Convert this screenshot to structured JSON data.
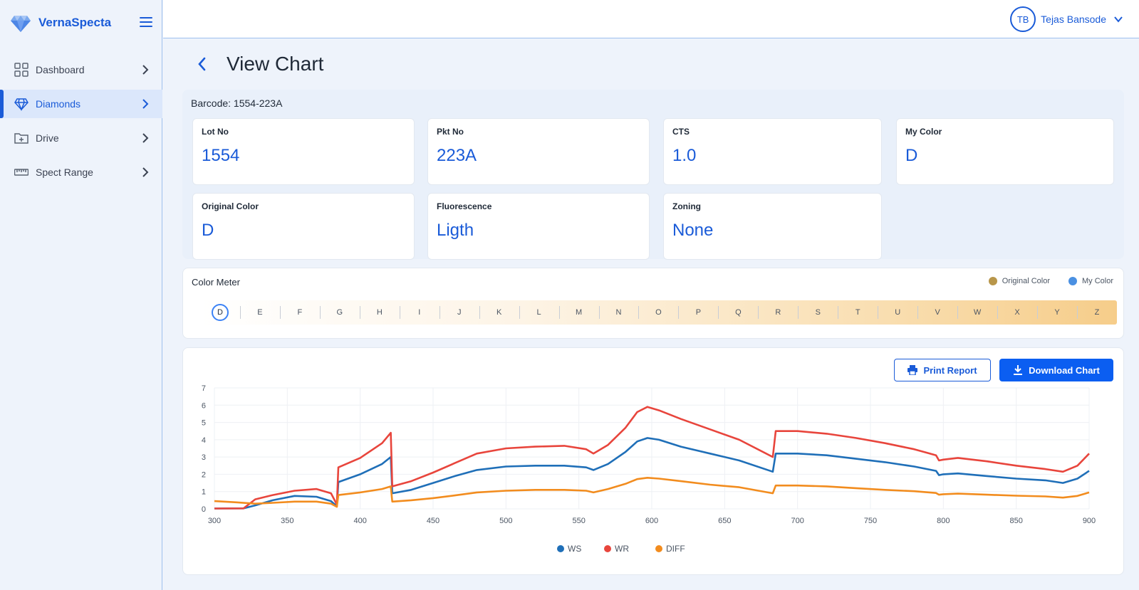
{
  "app": {
    "name": "VernaSpecta"
  },
  "user": {
    "initials": "TB",
    "name": "Tejas Bansode"
  },
  "sidebar": {
    "items": [
      {
        "label": "Dashboard",
        "icon": "grid-icon",
        "active": false
      },
      {
        "label": "Diamonds",
        "icon": "diamond-icon",
        "active": true
      },
      {
        "label": "Drive",
        "icon": "folder-plus-icon",
        "active": false
      },
      {
        "label": "Spect Range",
        "icon": "ruler-icon",
        "active": false
      }
    ]
  },
  "page": {
    "title": "View Chart",
    "barcode": "Barcode: 1554-223A"
  },
  "cards": [
    {
      "label": "Lot No",
      "value": "1554"
    },
    {
      "label": "Pkt No",
      "value": "223A"
    },
    {
      "label": "CTS",
      "value": "1.0"
    },
    {
      "label": "My Color",
      "value": "D"
    },
    {
      "label": "Original Color",
      "value": "D"
    },
    {
      "label": "Fluorescence",
      "value": "Ligth"
    },
    {
      "label": "Zoning",
      "value": "None"
    }
  ],
  "color_meter": {
    "title": "Color Meter",
    "legend": [
      {
        "label": "Original Color",
        "color": "#b8964a"
      },
      {
        "label": "My Color",
        "color": "#4a90e2"
      }
    ],
    "grades": [
      "D",
      "E",
      "F",
      "G",
      "H",
      "I",
      "J",
      "K",
      "L",
      "M",
      "N",
      "O",
      "P",
      "Q",
      "R",
      "S",
      "T",
      "U",
      "V",
      "W",
      "X",
      "Y",
      "Z"
    ],
    "selected": "D"
  },
  "actions": {
    "print_label": "Print Report",
    "download_label": "Download Chart"
  },
  "chart_data": {
    "type": "line",
    "xlim": [
      300,
      900
    ],
    "ylim": [
      0,
      7
    ],
    "x_ticks": [
      300,
      350,
      400,
      450,
      500,
      550,
      600,
      650,
      700,
      750,
      800,
      850,
      900
    ],
    "y_ticks": [
      0,
      1,
      2,
      3,
      4,
      5,
      6,
      7
    ],
    "grid": true,
    "legend_position": "bottom-center",
    "series": [
      {
        "name": "WS",
        "color": "#1f6fb8",
        "points": [
          [
            300,
            0.02
          ],
          [
            320,
            0.03
          ],
          [
            328,
            0.2
          ],
          [
            340,
            0.5
          ],
          [
            355,
            0.75
          ],
          [
            370,
            0.7
          ],
          [
            380,
            0.45
          ],
          [
            384,
            0.15
          ],
          [
            385,
            1.55
          ],
          [
            400,
            2.0
          ],
          [
            415,
            2.6
          ],
          [
            421,
            3.0
          ],
          [
            422,
            0.9
          ],
          [
            435,
            1.1
          ],
          [
            450,
            1.5
          ],
          [
            465,
            1.9
          ],
          [
            480,
            2.25
          ],
          [
            500,
            2.45
          ],
          [
            520,
            2.5
          ],
          [
            540,
            2.5
          ],
          [
            555,
            2.4
          ],
          [
            560,
            2.25
          ],
          [
            570,
            2.6
          ],
          [
            582,
            3.3
          ],
          [
            590,
            3.9
          ],
          [
            597,
            4.1
          ],
          [
            605,
            4.0
          ],
          [
            620,
            3.6
          ],
          [
            640,
            3.2
          ],
          [
            660,
            2.8
          ],
          [
            683,
            2.15
          ],
          [
            685,
            3.2
          ],
          [
            700,
            3.2
          ],
          [
            720,
            3.1
          ],
          [
            740,
            2.9
          ],
          [
            760,
            2.7
          ],
          [
            780,
            2.45
          ],
          [
            795,
            2.2
          ],
          [
            797,
            1.95
          ],
          [
            800,
            2.0
          ],
          [
            810,
            2.05
          ],
          [
            830,
            1.9
          ],
          [
            850,
            1.75
          ],
          [
            870,
            1.65
          ],
          [
            882,
            1.5
          ],
          [
            892,
            1.75
          ],
          [
            900,
            2.2
          ]
        ]
      },
      {
        "name": "WR",
        "color": "#e8453c",
        "points": [
          [
            300,
            0.02
          ],
          [
            320,
            0.03
          ],
          [
            328,
            0.55
          ],
          [
            340,
            0.8
          ],
          [
            355,
            1.05
          ],
          [
            370,
            1.15
          ],
          [
            380,
            0.9
          ],
          [
            384,
            0.25
          ],
          [
            385,
            2.4
          ],
          [
            400,
            2.95
          ],
          [
            415,
            3.8
          ],
          [
            421,
            4.4
          ],
          [
            422,
            1.3
          ],
          [
            435,
            1.6
          ],
          [
            450,
            2.1
          ],
          [
            465,
            2.65
          ],
          [
            480,
            3.2
          ],
          [
            500,
            3.5
          ],
          [
            520,
            3.6
          ],
          [
            540,
            3.65
          ],
          [
            555,
            3.45
          ],
          [
            560,
            3.2
          ],
          [
            570,
            3.7
          ],
          [
            582,
            4.7
          ],
          [
            590,
            5.6
          ],
          [
            597,
            5.9
          ],
          [
            605,
            5.7
          ],
          [
            620,
            5.2
          ],
          [
            640,
            4.6
          ],
          [
            660,
            4.0
          ],
          [
            683,
            3.0
          ],
          [
            685,
            4.5
          ],
          [
            700,
            4.5
          ],
          [
            720,
            4.35
          ],
          [
            740,
            4.1
          ],
          [
            760,
            3.8
          ],
          [
            780,
            3.45
          ],
          [
            795,
            3.1
          ],
          [
            797,
            2.8
          ],
          [
            800,
            2.85
          ],
          [
            810,
            2.95
          ],
          [
            830,
            2.75
          ],
          [
            850,
            2.5
          ],
          [
            870,
            2.3
          ],
          [
            882,
            2.15
          ],
          [
            892,
            2.5
          ],
          [
            900,
            3.2
          ]
        ]
      },
      {
        "name": "DIFF",
        "color": "#f28c1e",
        "points": [
          [
            300,
            0.45
          ],
          [
            315,
            0.38
          ],
          [
            328,
            0.3
          ],
          [
            340,
            0.35
          ],
          [
            355,
            0.42
          ],
          [
            370,
            0.42
          ],
          [
            380,
            0.3
          ],
          [
            384,
            0.12
          ],
          [
            385,
            0.8
          ],
          [
            400,
            0.95
          ],
          [
            415,
            1.15
          ],
          [
            421,
            1.3
          ],
          [
            422,
            0.42
          ],
          [
            435,
            0.5
          ],
          [
            450,
            0.62
          ],
          [
            465,
            0.78
          ],
          [
            480,
            0.95
          ],
          [
            500,
            1.05
          ],
          [
            520,
            1.1
          ],
          [
            540,
            1.1
          ],
          [
            555,
            1.05
          ],
          [
            560,
            0.95
          ],
          [
            570,
            1.15
          ],
          [
            582,
            1.45
          ],
          [
            590,
            1.72
          ],
          [
            597,
            1.8
          ],
          [
            605,
            1.75
          ],
          [
            620,
            1.6
          ],
          [
            640,
            1.4
          ],
          [
            660,
            1.25
          ],
          [
            683,
            0.9
          ],
          [
            685,
            1.35
          ],
          [
            700,
            1.35
          ],
          [
            720,
            1.3
          ],
          [
            740,
            1.2
          ],
          [
            760,
            1.1
          ],
          [
            780,
            1.02
          ],
          [
            795,
            0.92
          ],
          [
            797,
            0.82
          ],
          [
            800,
            0.85
          ],
          [
            810,
            0.88
          ],
          [
            830,
            0.82
          ],
          [
            850,
            0.76
          ],
          [
            870,
            0.72
          ],
          [
            882,
            0.65
          ],
          [
            892,
            0.75
          ],
          [
            900,
            0.95
          ]
        ]
      }
    ]
  }
}
